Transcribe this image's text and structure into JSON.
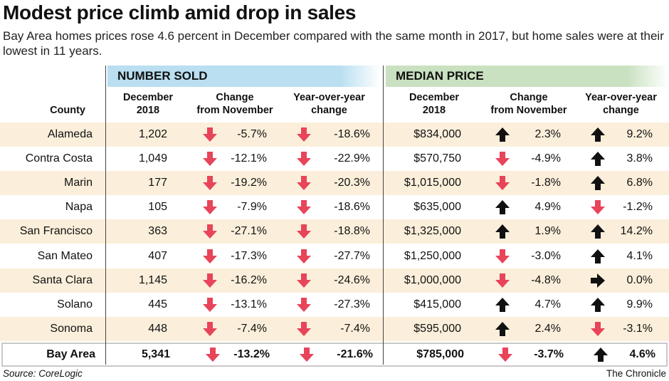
{
  "title": "Modest price climb amid drop in sales",
  "subtitle": "Bay Area homes prices rose 4.6 percent in December compared with the same month in 2017, but home sales were at their lowest in 11 years.",
  "sections": {
    "sold": "NUMBER SOLD",
    "price": "MEDIAN PRICE"
  },
  "columns": {
    "county": "County",
    "sold_dec_1": "December",
    "sold_dec_2": "2018",
    "sold_chg_1": "Change",
    "sold_chg_2": "from November",
    "sold_yoy_1": "Year-over-year",
    "sold_yoy_2": "change",
    "price_dec_1": "December",
    "price_dec_2": "2018",
    "price_chg_1": "Change",
    "price_chg_2": "from November",
    "price_yoy_1": "Year-over-year",
    "price_yoy_2": "change"
  },
  "rows": [
    {
      "county": "Alameda",
      "sold": "1,202",
      "sold_chg": "-5.7%",
      "sold_chg_dir": "down",
      "sold_yoy": "-18.6%",
      "sold_yoy_dir": "down",
      "price": "$834,000",
      "price_chg": "2.3%",
      "price_chg_dir": "up",
      "price_yoy": "9.2%",
      "price_yoy_dir": "up"
    },
    {
      "county": "Contra Costa",
      "sold": "1,049",
      "sold_chg": "-12.1%",
      "sold_chg_dir": "down",
      "sold_yoy": "-22.9%",
      "sold_yoy_dir": "down",
      "price": "$570,750",
      "price_chg": "-4.9%",
      "price_chg_dir": "down",
      "price_yoy": "3.8%",
      "price_yoy_dir": "up"
    },
    {
      "county": "Marin",
      "sold": "177",
      "sold_chg": "-19.2%",
      "sold_chg_dir": "down",
      "sold_yoy": "-20.3%",
      "sold_yoy_dir": "down",
      "price": "$1,015,000",
      "price_chg": "-1.8%",
      "price_chg_dir": "down",
      "price_yoy": "6.8%",
      "price_yoy_dir": "up"
    },
    {
      "county": "Napa",
      "sold": "105",
      "sold_chg": "-7.9%",
      "sold_chg_dir": "down",
      "sold_yoy": "-18.6%",
      "sold_yoy_dir": "down",
      "price": "$635,000",
      "price_chg": "4.9%",
      "price_chg_dir": "up",
      "price_yoy": "-1.2%",
      "price_yoy_dir": "down"
    },
    {
      "county": "San Francisco",
      "sold": "363",
      "sold_chg": "-27.1%",
      "sold_chg_dir": "down",
      "sold_yoy": "-18.8%",
      "sold_yoy_dir": "down",
      "price": "$1,325,000",
      "price_chg": "1.9%",
      "price_chg_dir": "up",
      "price_yoy": "14.2%",
      "price_yoy_dir": "up"
    },
    {
      "county": "San Mateo",
      "sold": "407",
      "sold_chg": "-17.3%",
      "sold_chg_dir": "down",
      "sold_yoy": "-27.7%",
      "sold_yoy_dir": "down",
      "price": "$1,250,000",
      "price_chg": "-3.0%",
      "price_chg_dir": "down",
      "price_yoy": "4.1%",
      "price_yoy_dir": "up"
    },
    {
      "county": "Santa Clara",
      "sold": "1,145",
      "sold_chg": "-16.2%",
      "sold_chg_dir": "down",
      "sold_yoy": "-24.6%",
      "sold_yoy_dir": "down",
      "price": "$1,000,000",
      "price_chg": "-4.8%",
      "price_chg_dir": "down",
      "price_yoy": "0.0%",
      "price_yoy_dir": "flat"
    },
    {
      "county": "Solano",
      "sold": "445",
      "sold_chg": "-13.1%",
      "sold_chg_dir": "down",
      "sold_yoy": "-27.3%",
      "sold_yoy_dir": "down",
      "price": "$415,000",
      "price_chg": "4.7%",
      "price_chg_dir": "up",
      "price_yoy": "9.9%",
      "price_yoy_dir": "up"
    },
    {
      "county": "Sonoma",
      "sold": "448",
      "sold_chg": "-7.4%",
      "sold_chg_dir": "down",
      "sold_yoy": "-7.4%",
      "sold_yoy_dir": "down",
      "price": "$595,000",
      "price_chg": "2.4%",
      "price_chg_dir": "up",
      "price_yoy": "-3.1%",
      "price_yoy_dir": "down"
    }
  ],
  "total": {
    "county": "Bay Area",
    "sold": "5,341",
    "sold_chg": "-13.2%",
    "sold_chg_dir": "down",
    "sold_yoy": "-21.6%",
    "sold_yoy_dir": "down",
    "price": "$785,000",
    "price_chg": "-3.7%",
    "price_chg_dir": "down",
    "price_yoy": "4.6%",
    "price_yoy_dir": "up"
  },
  "source": "Source: CoreLogic",
  "credit": "The Chronicle",
  "colors": {
    "down": "#e8445a",
    "up": "#111111",
    "flat": "#111111",
    "shade": "#fbefdb",
    "sold_band": "#b9dff0",
    "price_band": "#c9e1c0"
  }
}
